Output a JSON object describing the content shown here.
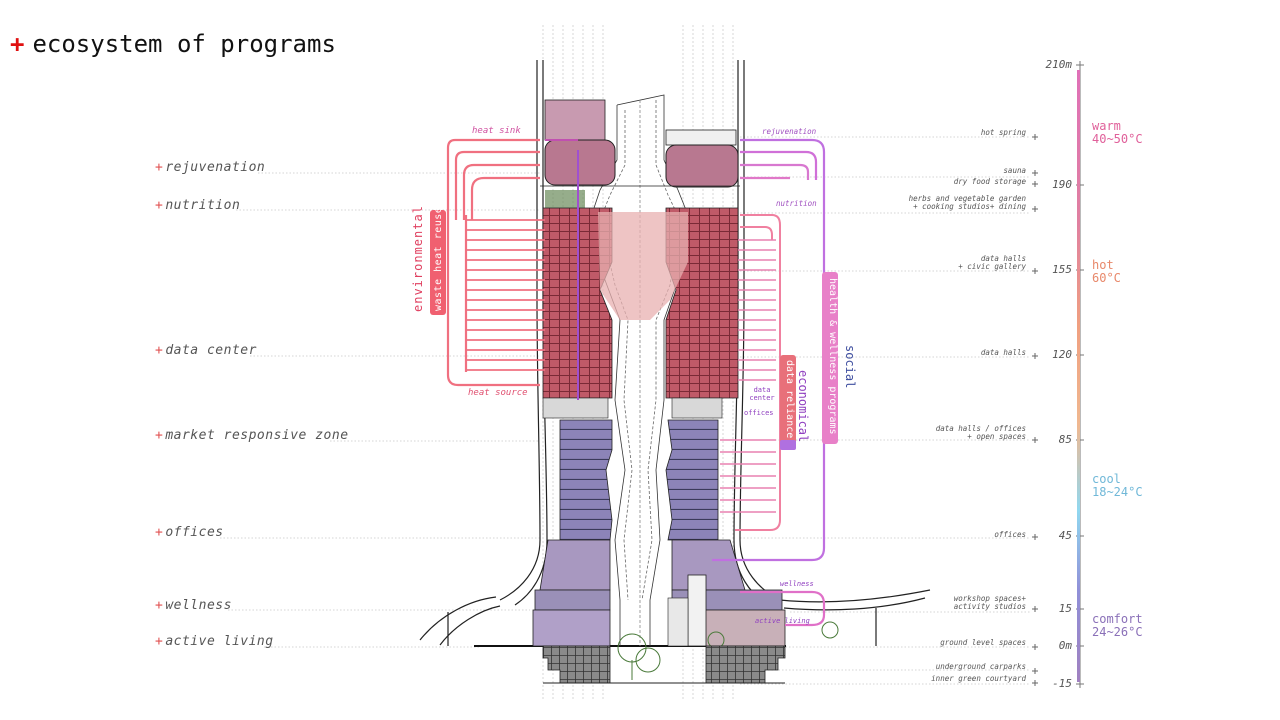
{
  "title": {
    "plus": "+",
    "text": "ecosystem of programs"
  },
  "programs": [
    {
      "plus": "+",
      "label": "rejuvenation"
    },
    {
      "plus": "+",
      "label": "nutrition"
    },
    {
      "plus": "+",
      "label": "data center"
    },
    {
      "plus": "+",
      "label": "market responsive zone"
    },
    {
      "plus": "+",
      "label": "offices"
    },
    {
      "plus": "+",
      "label": "wellness"
    },
    {
      "plus": "+",
      "label": "active living"
    }
  ],
  "right_notes": [
    "hot spring",
    "sauna",
    "dry food storage",
    "herbs and vegetable garden",
    "+ cooking studios+ dining",
    "data halls",
    "+ civic gallery",
    "data halls",
    "data halls / offices",
    "+ open spaces",
    "offices",
    "workshop spaces+",
    "activity studios",
    "ground level spaces",
    "underground carparks",
    "inner green courtyard"
  ],
  "levels": [
    "210m",
    "190",
    "155",
    "120",
    "85",
    "45",
    "15",
    "0m",
    "-15"
  ],
  "temperatures": [
    {
      "name": "warm",
      "range": "40~50°C",
      "color": "#e0609a"
    },
    {
      "name": "hot",
      "range": "60°C",
      "color": "#e8886a"
    },
    {
      "name": "cool",
      "range": "18~24°C",
      "color": "#70b8d8"
    },
    {
      "name": "comfort",
      "range": "24~26°C",
      "color": "#8a70b8"
    }
  ],
  "flows": {
    "environmental": "environmental",
    "waste_heat_reuse": "waste heat reuse",
    "heat_sink": "heat sink",
    "heat_source": "heat source",
    "rejuvenation": "rejuvenation",
    "nutrition": "nutrition",
    "health_wellness": "health & wellness programs",
    "social": "social",
    "economical": "economical",
    "data_reliance": "data reliance",
    "data_center": "data center",
    "offices": "offices",
    "wellness": "wellness",
    "active_living": "active living"
  },
  "colors": {
    "red_flow": "#f0707a",
    "pink_flow": "#e878c8",
    "violet_flow": "#b070e0",
    "title_plus": "#e01010",
    "social_text": "#4050a0"
  }
}
